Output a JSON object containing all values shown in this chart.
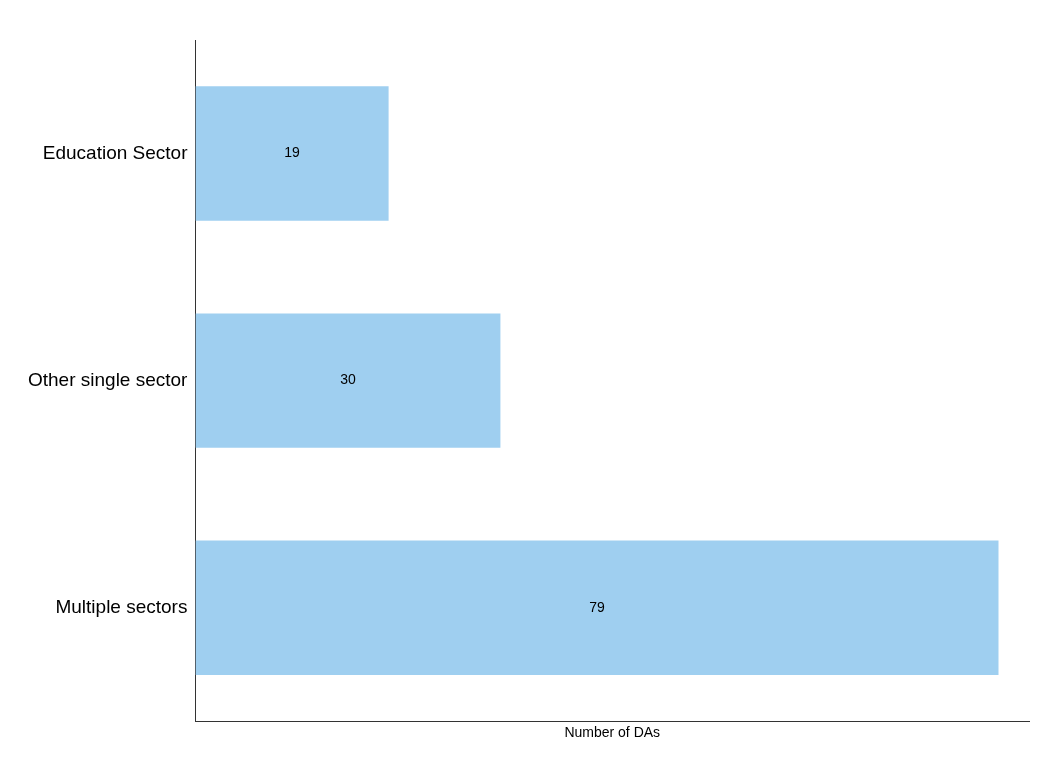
{
  "chart_data": {
    "type": "bar",
    "orientation": "horizontal",
    "xlabel": "Number of DAs",
    "categories": [
      "Education Sector",
      "Other single sector",
      "Multiple sectors"
    ],
    "values": [
      19,
      30,
      79
    ],
    "color": "#9fcff0",
    "xlim": [
      0,
      82
    ],
    "tick_labels": "y",
    "grid": false,
    "legend": false,
    "data_labels": true
  }
}
